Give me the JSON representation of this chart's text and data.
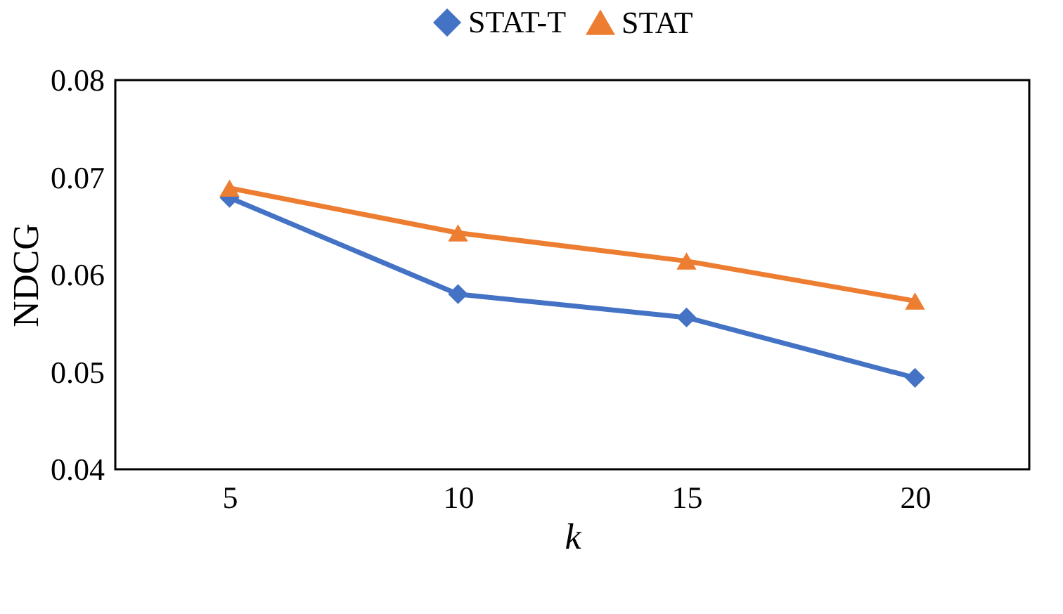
{
  "chart_data": {
    "type": "line",
    "xlabel": "k",
    "ylabel": "NDCG",
    "categories": [
      "5",
      "10",
      "15",
      "20"
    ],
    "series": [
      {
        "name": "STAT-T",
        "color": "#4472c4",
        "marker": "diamond",
        "values": [
          0.0679,
          0.058,
          0.0556,
          0.0494
        ]
      },
      {
        "name": "STAT",
        "color": "#ed7d31",
        "marker": "triangle",
        "values": [
          0.0689,
          0.0643,
          0.0614,
          0.0573
        ]
      }
    ],
    "ylim": [
      0.04,
      0.08
    ],
    "yticks": [
      0.04,
      0.05,
      0.06,
      0.07,
      0.08
    ],
    "grid": false,
    "legend": "top",
    "line_style": "solid"
  }
}
